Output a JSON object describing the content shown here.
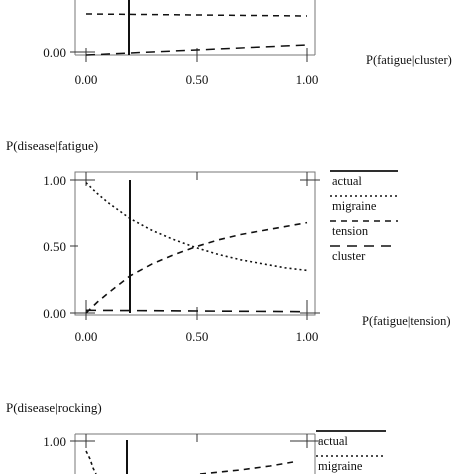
{
  "chart_data": [
    {
      "type": "line",
      "title": "",
      "xlabel": "P(fatigue|cluster)",
      "ylabel": "",
      "xlim": [
        0,
        1
      ],
      "ylim": [
        0,
        1
      ],
      "x_ticks": [
        "0.00",
        "0.50",
        "1.00"
      ],
      "y_ticks": [
        "0.00"
      ],
      "vline_x": 0.2,
      "series": [
        {
          "style": "dashed",
          "x": [
            0,
            0.25,
            0.5,
            0.75,
            1
          ],
          "values": [
            0.31,
            0.305,
            0.3,
            0.295,
            0.29
          ]
        },
        {
          "style": "dashed",
          "x": [
            0,
            0.25,
            0.5,
            0.75,
            1
          ],
          "values": [
            0.0,
            0.015,
            0.03,
            0.045,
            0.06
          ]
        }
      ]
    },
    {
      "type": "line",
      "title": "P(disease|fatigue)",
      "xlabel": "P(fatigue|tension)",
      "ylabel": "",
      "xlim": [
        0,
        1
      ],
      "ylim": [
        0,
        1
      ],
      "x_ticks": [
        "0.00",
        "0.50",
        "1.00"
      ],
      "y_ticks": [
        "1.00",
        "0.50",
        "0.00"
      ],
      "vline_x": 0.2,
      "legend": [
        "actual",
        "migraine",
        "tension",
        "cluster"
      ],
      "legend_position": "right",
      "series": [
        {
          "name": "actual",
          "style": "solid",
          "x": [
            0.2,
            0.2
          ],
          "values": [
            0,
            1
          ]
        },
        {
          "name": "migraine",
          "style": "dotted",
          "x": [
            0,
            0.05,
            0.1,
            0.2,
            0.3,
            0.4,
            0.5,
            0.6,
            0.7,
            0.8,
            0.9,
            1.0
          ],
          "values": [
            0.98,
            0.9,
            0.83,
            0.71,
            0.62,
            0.55,
            0.49,
            0.44,
            0.4,
            0.37,
            0.34,
            0.32
          ]
        },
        {
          "name": "tension",
          "style": "dashed",
          "x": [
            0,
            0.05,
            0.1,
            0.2,
            0.3,
            0.4,
            0.5,
            0.6,
            0.7,
            0.8,
            0.9,
            1.0
          ],
          "values": [
            0.0,
            0.08,
            0.15,
            0.28,
            0.37,
            0.44,
            0.5,
            0.55,
            0.59,
            0.62,
            0.65,
            0.68
          ]
        },
        {
          "name": "cluster",
          "style": "longdash",
          "x": [
            0,
            0.5,
            1.0
          ],
          "values": [
            0.02,
            0.015,
            0.01
          ]
        }
      ]
    },
    {
      "type": "line",
      "title": "P(disease|rocking)",
      "xlabel": "",
      "ylabel": "",
      "xlim": [
        0,
        1
      ],
      "ylim": [
        0,
        1
      ],
      "x_ticks": [],
      "y_ticks": [
        "1.00"
      ],
      "vline_x": 0.2,
      "legend": [
        "actual",
        "migraine"
      ],
      "legend_position": "right",
      "series": [
        {
          "name": "actual",
          "style": "solid",
          "x": [
            0.2,
            0.2
          ],
          "values": [
            0,
            1
          ]
        },
        {
          "name": "migraine",
          "style": "dotted",
          "x": [
            0,
            0.02,
            0.05,
            0.1
          ],
          "values": [
            0.95,
            0.85,
            0.78,
            0.72
          ]
        },
        {
          "style": "dashed",
          "x": [
            0.6,
            0.8,
            1.0
          ],
          "values": [
            0.7,
            0.76,
            0.82
          ]
        }
      ]
    }
  ]
}
